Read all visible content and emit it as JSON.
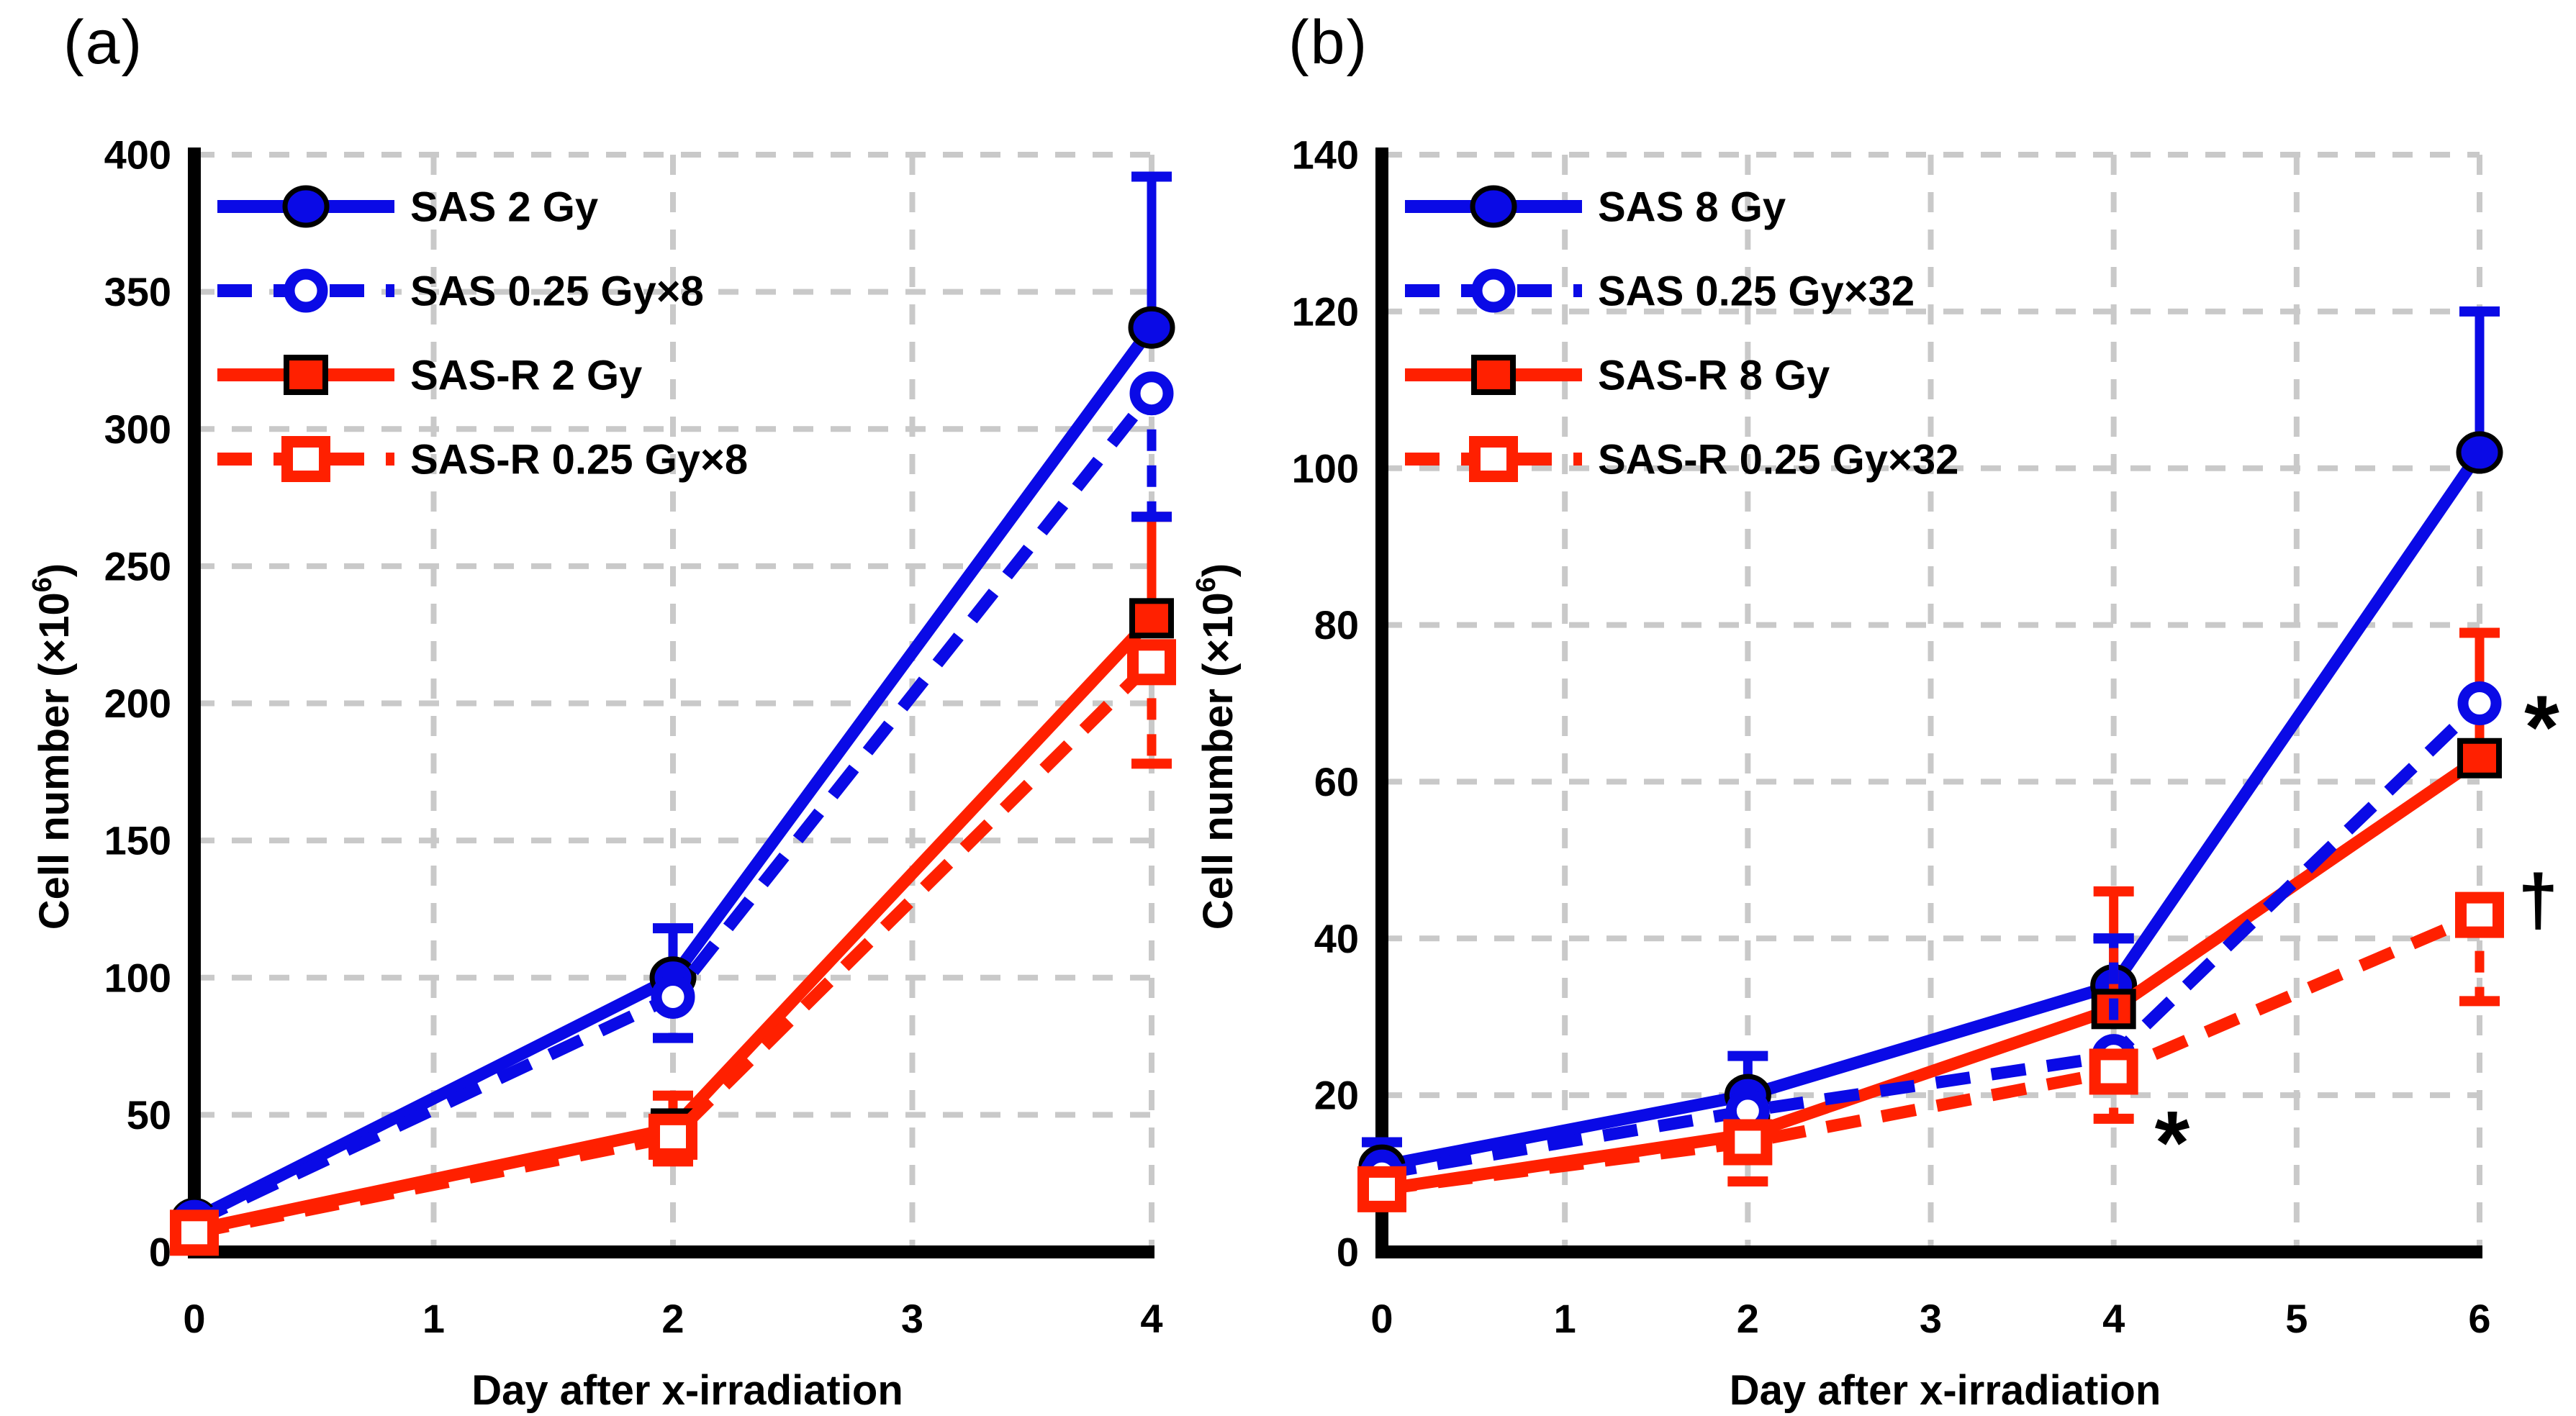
{
  "figure": {
    "panel_a_label": "(a)",
    "panel_b_label": "(b)"
  },
  "colors": {
    "sas_blue": "#0a0ae6",
    "sasr_red": "#ff2000",
    "grid_gray": "#c9c9c9",
    "axis_black": "#000000"
  },
  "chart_data": [
    {
      "type": "line",
      "panel": "a",
      "title": "",
      "xlabel": "Day after x-irradiation",
      "ylabel": {
        "prefix": "Cell number (×10",
        "sup": "6",
        "suffix": ")"
      },
      "xlim": [
        0,
        4
      ],
      "ylim": [
        0,
        400
      ],
      "xticks": [
        0,
        1,
        2,
        3,
        4
      ],
      "yticks": [
        0,
        50,
        100,
        150,
        200,
        250,
        300,
        350,
        400
      ],
      "grid": true,
      "legend_position": "top-left-inside",
      "x": [
        0,
        2,
        4
      ],
      "series": [
        {
          "name": "SAS 2 Gy",
          "color": "#0a0ae6",
          "line": "solid",
          "marker": "circle-filled",
          "values": [
            12,
            100,
            337
          ],
          "err_plus": [
            0,
            18,
            55
          ],
          "err_minus": [
            0,
            0,
            0
          ]
        },
        {
          "name": "SAS 0.25 Gy×8",
          "color": "#0a0ae6",
          "line": "dashed",
          "marker": "circle-open",
          "values": [
            11,
            93,
            313
          ],
          "err_plus": [
            0,
            0,
            0
          ],
          "err_minus": [
            0,
            15,
            45
          ]
        },
        {
          "name": "SAS-R 2 Gy",
          "color": "#ff2000",
          "line": "solid",
          "marker": "square-filled",
          "values": [
            8,
            45,
            231
          ],
          "err_plus": [
            0,
            12,
            37
          ],
          "err_minus": [
            0,
            0,
            0
          ]
        },
        {
          "name": "SAS-R 0.25 Gy×8",
          "color": "#ff2000",
          "line": "dashed",
          "marker": "square-open",
          "values": [
            7,
            42,
            215
          ],
          "err_plus": [
            0,
            0,
            0
          ],
          "err_minus": [
            0,
            9,
            37
          ]
        }
      ],
      "annotations": []
    },
    {
      "type": "line",
      "panel": "b",
      "title": "",
      "xlabel": "Day after x-irradiation",
      "ylabel": {
        "prefix": "Cell number (×10",
        "sup": "6",
        "suffix": ")"
      },
      "xlim": [
        0,
        6
      ],
      "ylim": [
        0,
        140
      ],
      "xticks": [
        0,
        1,
        2,
        3,
        4,
        5,
        6
      ],
      "yticks": [
        0,
        20,
        40,
        60,
        80,
        100,
        120,
        140
      ],
      "grid": true,
      "legend_position": "top-left-inside",
      "x": [
        0,
        2,
        4,
        6
      ],
      "series": [
        {
          "name": "SAS 8 Gy",
          "color": "#0a0ae6",
          "line": "solid",
          "marker": "circle-filled",
          "values": [
            11,
            20,
            34,
            102
          ],
          "err_plus": [
            3,
            5,
            6,
            18
          ],
          "err_minus": [
            0,
            0,
            0,
            0
          ]
        },
        {
          "name": "SAS 0.25 Gy×32",
          "color": "#0a0ae6",
          "line": "dashed",
          "marker": "circle-open",
          "values": [
            10,
            18,
            25,
            70
          ],
          "err_plus": [
            0,
            0,
            15,
            0
          ],
          "err_minus": [
            0,
            0,
            0,
            0
          ]
        },
        {
          "name": "SAS-R 8 Gy",
          "color": "#ff2000",
          "line": "solid",
          "marker": "square-filled",
          "values": [
            8,
            15,
            31,
            63
          ],
          "err_plus": [
            0,
            0,
            15,
            16
          ],
          "err_minus": [
            0,
            0,
            0,
            0
          ]
        },
        {
          "name": "SAS-R 0.25 Gy×32",
          "color": "#ff2000",
          "line": "dashed",
          "marker": "square-open",
          "values": [
            8,
            14,
            23,
            43
          ],
          "err_plus": [
            0,
            0,
            0,
            0
          ],
          "err_minus": [
            0,
            5,
            6,
            11
          ]
        }
      ],
      "annotations": [
        {
          "text": "*",
          "x": 4.32,
          "y": 14,
          "size": 125
        },
        {
          "text": "*",
          "x": 6.34,
          "y": 67,
          "size": 125
        },
        {
          "text": "†",
          "x": 6.32,
          "y": 45,
          "size": 100
        }
      ]
    }
  ]
}
